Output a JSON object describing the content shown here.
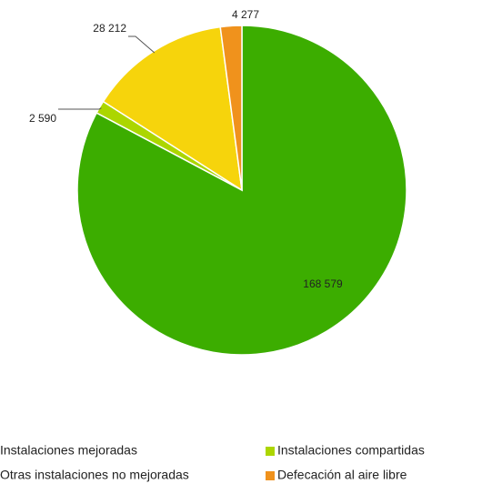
{
  "chart_data": {
    "type": "pie",
    "categories": [
      "Instalaciones mejoradas",
      "Instalaciones compartidas",
      "Otras instalaciones no mejoradas",
      "Defecación al aire libre"
    ],
    "values": [
      168579,
      2590,
      28212,
      4277
    ],
    "value_labels": [
      "168 579",
      "2 590",
      "28 212",
      "4 277"
    ],
    "colors": [
      "#3cad00",
      "#acd600",
      "#f6d40c",
      "#f0921c"
    ]
  }
}
